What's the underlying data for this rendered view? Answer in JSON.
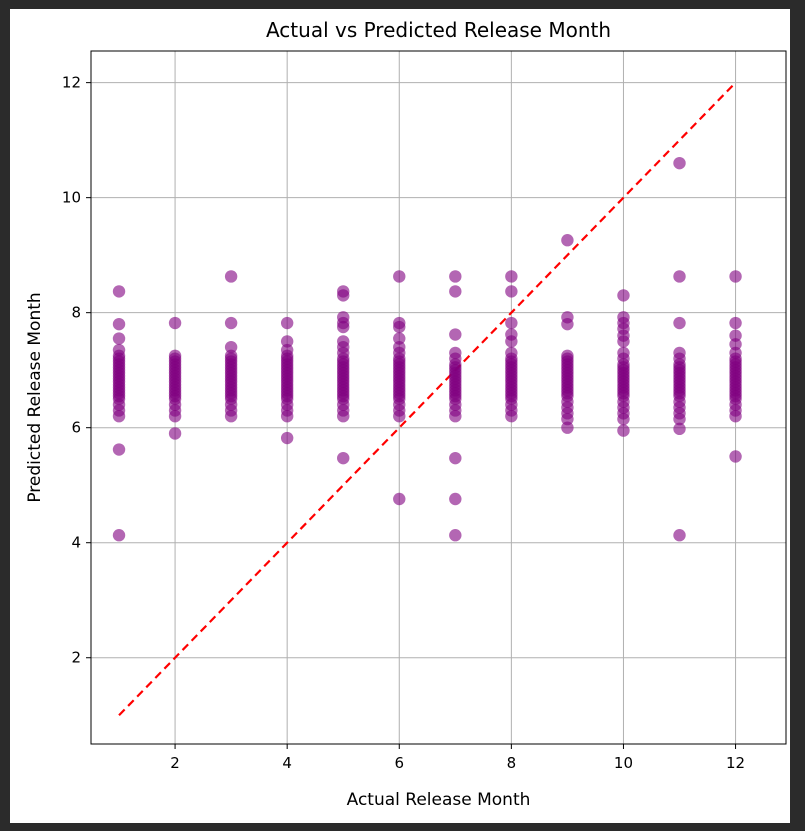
{
  "chart_data": {
    "type": "scatter",
    "title": "Actual vs Predicted Release Month",
    "xlabel": "Actual Release Month",
    "ylabel": "Predicted Release Month",
    "xlim": [
      0.5,
      12.9
    ],
    "ylim": [
      0.5,
      12.55
    ],
    "xticks": [
      2,
      4,
      6,
      8,
      10,
      12
    ],
    "yticks": [
      2,
      4,
      6,
      8,
      10,
      12
    ],
    "grid": true,
    "legend": "none",
    "colors": {
      "points": "#800080",
      "reference_line": "#ff0000",
      "grid": "#b0b0b0"
    },
    "reference_line": {
      "x": [
        1,
        12
      ],
      "y": [
        1,
        12
      ],
      "style": "dashed"
    },
    "points": [
      {
        "x": 1,
        "y": [
          4.13,
          5.62,
          6.2,
          6.3,
          6.4,
          6.5,
          6.55,
          6.6,
          6.65,
          6.7,
          6.75,
          6.8,
          6.85,
          6.9,
          6.95,
          7.0,
          7.05,
          7.1,
          7.15,
          7.2,
          7.25,
          7.35,
          7.55,
          7.8,
          8.37
        ]
      },
      {
        "x": 2,
        "y": [
          5.9,
          6.2,
          6.3,
          6.4,
          6.5,
          6.55,
          6.6,
          6.65,
          6.7,
          6.75,
          6.8,
          6.85,
          6.9,
          6.95,
          7.0,
          7.05,
          7.1,
          7.15,
          7.2,
          7.25,
          7.82
        ]
      },
      {
        "x": 3,
        "y": [
          6.2,
          6.3,
          6.4,
          6.5,
          6.55,
          6.6,
          6.65,
          6.7,
          6.75,
          6.8,
          6.85,
          6.9,
          6.95,
          7.0,
          7.05,
          7.1,
          7.15,
          7.2,
          7.25,
          7.4,
          7.82,
          8.63
        ]
      },
      {
        "x": 4,
        "y": [
          5.82,
          6.2,
          6.3,
          6.4,
          6.5,
          6.55,
          6.6,
          6.65,
          6.7,
          6.75,
          6.8,
          6.85,
          6.9,
          6.95,
          7.0,
          7.05,
          7.1,
          7.15,
          7.2,
          7.25,
          7.35,
          7.5,
          7.82
        ]
      },
      {
        "x": 5,
        "y": [
          5.47,
          6.2,
          6.3,
          6.4,
          6.5,
          6.55,
          6.6,
          6.65,
          6.7,
          6.75,
          6.8,
          6.85,
          6.9,
          6.95,
          7.0,
          7.05,
          7.1,
          7.15,
          7.2,
          7.3,
          7.4,
          7.5,
          7.75,
          7.82,
          7.92,
          8.3,
          8.37
        ]
      },
      {
        "x": 6,
        "y": [
          4.76,
          6.2,
          6.3,
          6.4,
          6.5,
          6.55,
          6.6,
          6.65,
          6.7,
          6.75,
          6.8,
          6.85,
          6.9,
          6.95,
          7.0,
          7.05,
          7.1,
          7.15,
          7.2,
          7.3,
          7.4,
          7.55,
          7.75,
          7.82,
          8.63
        ]
      },
      {
        "x": 7,
        "y": [
          4.13,
          4.76,
          5.47,
          6.2,
          6.3,
          6.4,
          6.5,
          6.55,
          6.6,
          6.65,
          6.7,
          6.75,
          6.8,
          6.85,
          6.9,
          6.95,
          7.0,
          7.05,
          7.1,
          7.2,
          7.3,
          7.62,
          8.37,
          8.63
        ]
      },
      {
        "x": 8,
        "y": [
          6.2,
          6.3,
          6.4,
          6.5,
          6.55,
          6.6,
          6.65,
          6.7,
          6.75,
          6.8,
          6.85,
          6.9,
          6.95,
          7.0,
          7.05,
          7.1,
          7.15,
          7.2,
          7.3,
          7.5,
          7.62,
          7.82,
          8.37,
          8.63
        ]
      },
      {
        "x": 9,
        "y": [
          6.0,
          6.15,
          6.25,
          6.35,
          6.45,
          6.55,
          6.6,
          6.65,
          6.7,
          6.75,
          6.8,
          6.85,
          6.9,
          6.95,
          7.0,
          7.05,
          7.1,
          7.15,
          7.2,
          7.25,
          7.8,
          7.92,
          9.26
        ]
      },
      {
        "x": 10,
        "y": [
          5.95,
          6.15,
          6.25,
          6.35,
          6.45,
          6.55,
          6.6,
          6.65,
          6.7,
          6.75,
          6.8,
          6.85,
          6.9,
          6.95,
          7.0,
          7.05,
          7.1,
          7.2,
          7.3,
          7.5,
          7.6,
          7.72,
          7.82,
          7.92,
          8.3
        ]
      },
      {
        "x": 11,
        "y": [
          4.13,
          5.98,
          6.15,
          6.25,
          6.35,
          6.45,
          6.55,
          6.6,
          6.65,
          6.7,
          6.75,
          6.8,
          6.85,
          6.9,
          6.95,
          7.0,
          7.05,
          7.1,
          7.2,
          7.3,
          7.82,
          8.63,
          10.6
        ]
      },
      {
        "x": 12,
        "y": [
          5.5,
          6.2,
          6.3,
          6.4,
          6.5,
          6.55,
          6.6,
          6.65,
          6.7,
          6.75,
          6.8,
          6.85,
          6.9,
          6.95,
          7.0,
          7.05,
          7.1,
          7.15,
          7.2,
          7.3,
          7.45,
          7.6,
          7.82,
          8.63
        ]
      }
    ]
  }
}
